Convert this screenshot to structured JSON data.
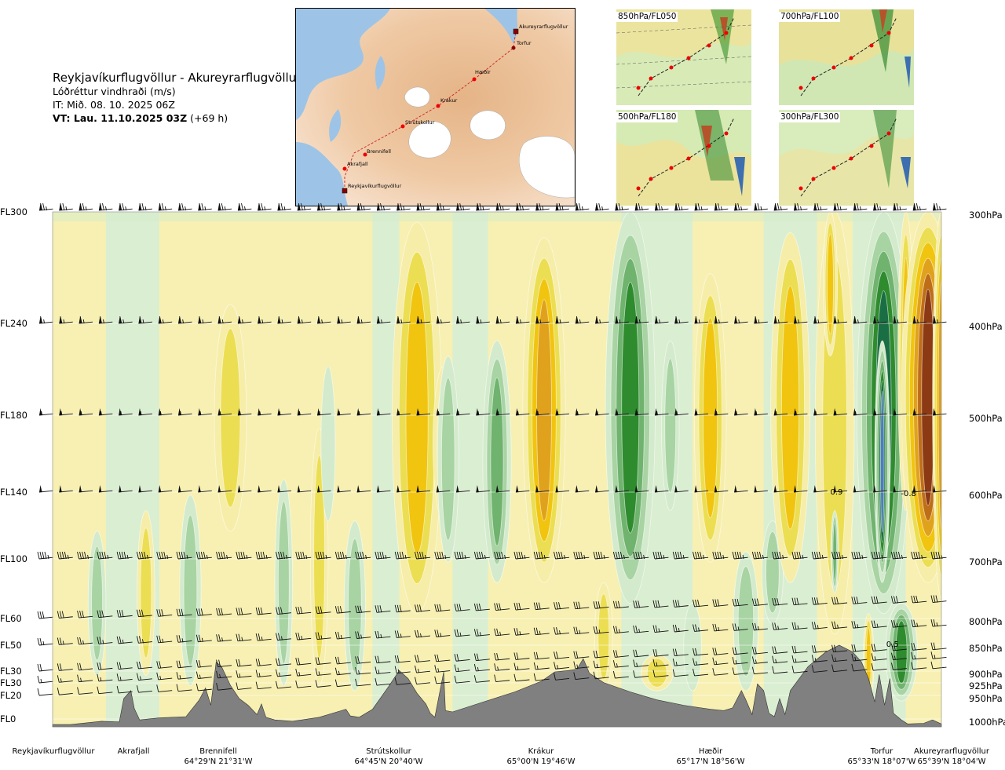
{
  "header": {
    "route": "Reykjavíkurflugvöllur - Akureyrarflugvöllur",
    "parameter": "Lóðréttur vindhraði (m/s)",
    "issue_time": "IT: Mið. 08. 10. 2025 06Z",
    "valid_prefix": "VT: Lau. 11.10.2025 03Z",
    "valid_suffix": "(+69 h)"
  },
  "overview_map": {
    "waypoints": [
      "Akureyrarflugvöllur",
      "Torfur",
      "Hæðir",
      "Krákur",
      "Strútskollur",
      "Brennifell",
      "Akrafjall",
      "Reykjavíkurflugvöllur"
    ]
  },
  "thumbnails": [
    {
      "label": "850hPa/FL050"
    },
    {
      "label": "700hPa/FL100"
    },
    {
      "label": "500hPa/FL180"
    },
    {
      "label": "300hPa/FL300"
    }
  ],
  "colors": {
    "strong_up": "#8b3a14",
    "up_3": "#bf6e18",
    "up_2": "#e0a21c",
    "up_1": "#f1c40f",
    "up_05": "#ecde52",
    "up_02": "#f6eda8",
    "calm": "#fafbe8",
    "down_02": "#d3ebcc",
    "down_05": "#a8d3a3",
    "down_1": "#6fb36e",
    "down_2": "#2e8b2e",
    "down_3": "#1a6e43",
    "strong_down": "#4a7fb8",
    "terrain": "#808080"
  },
  "chart_data": {
    "type": "heatmap",
    "title": "Lóðréttur vindhraði (m/s)",
    "x_axis": {
      "stations": [
        {
          "name": "Reykjavíkurflugvöllur",
          "coord": "",
          "pos": 0.0
        },
        {
          "name": "Akrafjall",
          "coord": "",
          "pos": 0.09
        },
        {
          "name": "Brennifell",
          "coord": "64°29'N 21°31'W",
          "pos": 0.19
        },
        {
          "name": "Strútskollur",
          "coord": "64°45'N 20°40'W",
          "pos": 0.39
        },
        {
          "name": "Krákur",
          "coord": "65°00'N 19°46'W",
          "pos": 0.58
        },
        {
          "name": "Hæðir",
          "coord": "65°17'N 18°56'W",
          "pos": 0.77
        },
        {
          "name": "Torfur",
          "coord": "65°33'N 18°07'W",
          "pos": 0.94
        },
        {
          "name": "Akureyrarflugvöllur",
          "coord": "65°39'N 18°04'W",
          "pos": 1.0
        }
      ]
    },
    "y_axis": {
      "left": [
        {
          "label": "FL300",
          "hpa": 300
        },
        {
          "label": "FL240",
          "hpa": 400
        },
        {
          "label": "FL180",
          "hpa": 500
        },
        {
          "label": "FL140",
          "hpa": 600
        },
        {
          "label": "FL100",
          "hpa": 700
        },
        {
          "label": "FL60",
          "hpa": 800
        },
        {
          "label": "FL50",
          "hpa": 850
        },
        {
          "label": "FL30",
          "hpa": 900
        },
        {
          "label": "FL30",
          "hpa": 925
        },
        {
          "label": "FL20",
          "hpa": 950
        },
        {
          "label": "FL0",
          "hpa": 1000
        }
      ],
      "right": [
        "300hPa",
        "400hPa",
        "500hPa",
        "600hPa",
        "700hPa",
        "800hPa",
        "850hPa",
        "900hPa",
        "925hPa",
        "950hPa",
        "1000hPa"
      ]
    },
    "annotations": [
      "0.9",
      "-0.8",
      "0.5"
    ],
    "features": [
      {
        "pos": 0.2,
        "w": 0.018,
        "top": 0.18,
        "bot": 0.62,
        "v": 0.5
      },
      {
        "pos": 0.41,
        "w": 0.028,
        "top": 0.02,
        "bot": 0.78,
        "v": 1.3
      },
      {
        "pos": 0.44,
        "w": 0.012,
        "top": 0.3,
        "bot": 0.6,
        "v": 0.5
      },
      {
        "pos": 0.445,
        "w": 0.012,
        "top": 0.28,
        "bot": 0.68,
        "v": -0.4
      },
      {
        "pos": 0.5,
        "w": 0.016,
        "top": 0.25,
        "bot": 0.72,
        "v": -1.1
      },
      {
        "pos": 0.553,
        "w": 0.024,
        "top": 0.05,
        "bot": 0.72,
        "v": 1.7
      },
      {
        "pos": 0.65,
        "w": 0.028,
        "top": 0.0,
        "bot": 0.76,
        "v": -2.2
      },
      {
        "pos": 0.695,
        "w": 0.01,
        "top": 0.25,
        "bot": 0.58,
        "v": -0.5
      },
      {
        "pos": 0.74,
        "w": 0.018,
        "top": 0.12,
        "bot": 0.68,
        "v": 1.3
      },
      {
        "pos": 0.81,
        "w": 0.012,
        "top": 0.6,
        "bot": 0.8,
        "v": -0.5
      },
      {
        "pos": 0.83,
        "w": 0.022,
        "top": 0.04,
        "bot": 0.72,
        "v": 1.4
      },
      {
        "pos": 0.88,
        "w": 0.022,
        "top": 0.0,
        "bot": 0.82,
        "v": 0.6
      },
      {
        "pos": 0.875,
        "w": 0.008,
        "top": 0.0,
        "bot": 0.28,
        "v": 0.8
      },
      {
        "pos": 0.88,
        "w": 0.0045,
        "top": 0.58,
        "bot": 0.74,
        "v": -0.9
      },
      {
        "pos": 0.935,
        "w": 0.03,
        "top": 0.0,
        "bot": 0.78,
        "v": -3.2
      },
      {
        "pos": 0.9335,
        "w": 0.0085,
        "top": 0.25,
        "bot": 0.72,
        "v": -3.6
      },
      {
        "pos": 0.96,
        "w": 0.009,
        "top": 0.0,
        "bot": 0.58,
        "v": 1.2
      },
      {
        "pos": 0.985,
        "w": 0.03,
        "top": 0.0,
        "bot": 0.72,
        "v": 3.3
      },
      {
        "pos": 1.0,
        "w": 0.01,
        "top": 0.0,
        "bot": 0.75,
        "v": 1.6
      },
      {
        "pos": 0.955,
        "w": 0.018,
        "top": 0.76,
        "bot": 0.95,
        "v": -2.2
      },
      {
        "pos": 0.918,
        "w": 0.006,
        "top": 0.78,
        "bot": 0.96,
        "v": 1.2
      },
      {
        "pos": 0.05,
        "w": 0.01,
        "top": 0.62,
        "bot": 0.9,
        "v": -0.4
      },
      {
        "pos": 0.105,
        "w": 0.01,
        "top": 0.58,
        "bot": 0.9,
        "v": 0.6
      },
      {
        "pos": 0.155,
        "w": 0.012,
        "top": 0.55,
        "bot": 0.92,
        "v": -0.5
      },
      {
        "pos": 0.26,
        "w": 0.01,
        "top": 0.52,
        "bot": 0.92,
        "v": -0.4
      },
      {
        "pos": 0.3,
        "w": 0.01,
        "top": 0.42,
        "bot": 0.92,
        "v": 0.5
      },
      {
        "pos": 0.31,
        "w": 0.008,
        "top": 0.3,
        "bot": 0.6,
        "v": -0.3
      },
      {
        "pos": 0.34,
        "w": 0.012,
        "top": 0.6,
        "bot": 0.93,
        "v": -0.5
      },
      {
        "pos": 0.62,
        "w": 0.01,
        "top": 0.72,
        "bot": 0.93,
        "v": 0.4
      },
      {
        "pos": 0.72,
        "w": 0.01,
        "top": 0.76,
        "bot": 0.93,
        "v": -0.3
      },
      {
        "pos": 0.78,
        "w": 0.014,
        "top": 0.66,
        "bot": 0.93,
        "v": -0.5
      },
      {
        "pos": 0.68,
        "w": 0.018,
        "top": 0.86,
        "bot": 0.93,
        "v": 0.5
      }
    ],
    "terrain_profile_m": [
      [
        0.0,
        10
      ],
      [
        0.02,
        10
      ],
      [
        0.055,
        60
      ],
      [
        0.075,
        50
      ],
      [
        0.08,
        400
      ],
      [
        0.088,
        520
      ],
      [
        0.092,
        250
      ],
      [
        0.098,
        80
      ],
      [
        0.12,
        110
      ],
      [
        0.15,
        130
      ],
      [
        0.165,
        380
      ],
      [
        0.172,
        560
      ],
      [
        0.178,
        300
      ],
      [
        0.184,
        950
      ],
      [
        0.19,
        880
      ],
      [
        0.2,
        600
      ],
      [
        0.21,
        400
      ],
      [
        0.22,
        300
      ],
      [
        0.23,
        160
      ],
      [
        0.235,
        320
      ],
      [
        0.24,
        120
      ],
      [
        0.25,
        80
      ],
      [
        0.27,
        60
      ],
      [
        0.3,
        120
      ],
      [
        0.32,
        200
      ],
      [
        0.33,
        240
      ],
      [
        0.335,
        140
      ],
      [
        0.345,
        120
      ],
      [
        0.36,
        240
      ],
      [
        0.378,
        580
      ],
      [
        0.39,
        820
      ],
      [
        0.4,
        700
      ],
      [
        0.41,
        480
      ],
      [
        0.42,
        320
      ],
      [
        0.425,
        180
      ],
      [
        0.43,
        120
      ],
      [
        0.44,
        800
      ],
      [
        0.442,
        220
      ],
      [
        0.45,
        200
      ],
      [
        0.48,
        330
      ],
      [
        0.52,
        500
      ],
      [
        0.55,
        660
      ],
      [
        0.565,
        800
      ],
      [
        0.58,
        820
      ],
      [
        0.59,
        840
      ],
      [
        0.597,
        1000
      ],
      [
        0.604,
        780
      ],
      [
        0.62,
        640
      ],
      [
        0.65,
        500
      ],
      [
        0.68,
        380
      ],
      [
        0.71,
        300
      ],
      [
        0.74,
        240
      ],
      [
        0.755,
        220
      ],
      [
        0.765,
        260
      ],
      [
        0.775,
        520
      ],
      [
        0.78,
        380
      ],
      [
        0.787,
        160
      ],
      [
        0.793,
        620
      ],
      [
        0.8,
        520
      ],
      [
        0.806,
        180
      ],
      [
        0.812,
        130
      ],
      [
        0.818,
        400
      ],
      [
        0.824,
        160
      ],
      [
        0.83,
        520
      ],
      [
        0.85,
        880
      ],
      [
        0.87,
        1100
      ],
      [
        0.885,
        1200
      ],
      [
        0.9,
        1100
      ],
      [
        0.91,
        950
      ],
      [
        0.918,
        700
      ],
      [
        0.925,
        350
      ],
      [
        0.93,
        760
      ],
      [
        0.936,
        300
      ],
      [
        0.942,
        700
      ],
      [
        0.946,
        180
      ],
      [
        0.955,
        80
      ],
      [
        0.962,
        20
      ],
      [
        0.98,
        30
      ],
      [
        0.99,
        80
      ],
      [
        1.0,
        20
      ]
    ],
    "wind_barbs": [
      {
        "fl": "FL300",
        "dir": 280,
        "kt": 75
      },
      {
        "fl": "FL240",
        "dir": 285,
        "kt": 65
      },
      {
        "fl": "FL180",
        "dir": 290,
        "kt": 55
      },
      {
        "fl": "FL140",
        "dir": 295,
        "kt": 50
      },
      {
        "fl": "FL100",
        "dir": 300,
        "kt": 45
      },
      {
        "fl": "FL60",
        "dir": 300,
        "kt": 30
      },
      {
        "fl": "FL50",
        "dir": 305,
        "kt": 25
      },
      {
        "fl": "FL30",
        "dir": 310,
        "kt": 20
      },
      {
        "fl": "FL30",
        "dir": 315,
        "kt": 15
      },
      {
        "fl": "FL20",
        "dir": 320,
        "kt": 10
      }
    ]
  }
}
